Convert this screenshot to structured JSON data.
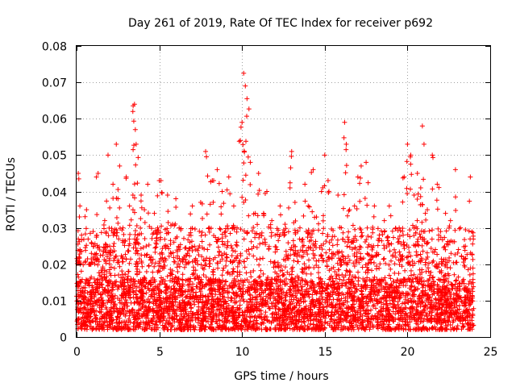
{
  "chart_data": {
    "type": "scatter",
    "title": "Day 261 of 2019, Rate Of TEC Index for receiver p692",
    "xlabel": "GPS time / hours",
    "ylabel": "ROTI / TECUs",
    "xlim": [
      0,
      25
    ],
    "ylim": [
      0,
      0.08
    ],
    "xticks": [
      0,
      5,
      10,
      15,
      20,
      25
    ],
    "xtick_labels": [
      "0",
      "5",
      "10",
      "15",
      "20",
      "25"
    ],
    "yticks": [
      0,
      0.01,
      0.02,
      0.03,
      0.04,
      0.05,
      0.06,
      0.07,
      0.08
    ],
    "ytick_labels": [
      "0",
      "0.01",
      "0.02",
      "0.03",
      "0.04",
      "0.05",
      "0.06",
      "0.07",
      "0.08"
    ],
    "grid": true,
    "marker": "+",
    "series_color": "#ff0000",
    "series": [
      {
        "name": "ROTI",
        "x": [
          0.1,
          0.15,
          0.2,
          0.3,
          0.45,
          0.6,
          0.8,
          1.0,
          1.2,
          1.3,
          1.5,
          1.7,
          1.9,
          2.0,
          2.2,
          2.4,
          2.5,
          2.6,
          2.8,
          3.0,
          3.2,
          3.4,
          3.5,
          3.55,
          3.6,
          3.7,
          3.9,
          4.1,
          4.3,
          4.5,
          4.7,
          4.9,
          5.0,
          5.1,
          5.3,
          5.5,
          5.8,
          6.0,
          6.2,
          6.5,
          6.8,
          7.0,
          7.2,
          7.5,
          7.8,
          8.0,
          8.2,
          8.5,
          8.8,
          9.0,
          9.2,
          9.5,
          9.7,
          9.9,
          10.0,
          10.1,
          10.2,
          10.3,
          10.5,
          10.8,
          11.0,
          11.3,
          11.5,
          11.8,
          12.0,
          12.3,
          12.6,
          12.9,
          13.0,
          13.2,
          13.5,
          13.8,
          14.0,
          14.3,
          14.5,
          14.8,
          15.0,
          15.2,
          15.5,
          15.8,
          16.0,
          16.2,
          16.3,
          16.5,
          16.8,
          17.0,
          17.2,
          17.5,
          17.8,
          18.0,
          18.3,
          18.6,
          18.9,
          19.2,
          19.5,
          19.8,
          20.0,
          20.2,
          20.4,
          20.6,
          20.8,
          20.9,
          21.0,
          21.2,
          21.5,
          21.8,
          22.0,
          22.3,
          22.6,
          22.9,
          23.2,
          23.5,
          23.8
        ],
        "y": [
          0.045,
          0.022,
          0.036,
          0.028,
          0.012,
          0.035,
          0.02,
          0.029,
          0.044,
          0.045,
          0.016,
          0.032,
          0.05,
          0.025,
          0.042,
          0.053,
          0.038,
          0.047,
          0.03,
          0.044,
          0.036,
          0.062,
          0.064,
          0.057,
          0.053,
          0.028,
          0.039,
          0.035,
          0.042,
          0.022,
          0.034,
          0.03,
          0.043,
          0.043,
          0.025,
          0.039,
          0.031,
          0.038,
          0.03,
          0.022,
          0.028,
          0.036,
          0.024,
          0.037,
          0.051,
          0.03,
          0.043,
          0.046,
          0.04,
          0.029,
          0.044,
          0.036,
          0.03,
          0.054,
          0.059,
          0.0725,
          0.069,
          0.0655,
          0.048,
          0.034,
          0.045,
          0.034,
          0.04,
          0.032,
          0.028,
          0.036,
          0.031,
          0.041,
          0.051,
          0.037,
          0.03,
          0.042,
          0.036,
          0.046,
          0.033,
          0.04,
          0.05,
          0.043,
          0.023,
          0.039,
          0.03,
          0.059,
          0.053,
          0.035,
          0.036,
          0.044,
          0.047,
          0.048,
          0.025,
          0.036,
          0.028,
          0.032,
          0.036,
          0.024,
          0.03,
          0.044,
          0.053,
          0.05,
          0.039,
          0.045,
          0.041,
          0.058,
          0.053,
          0.035,
          0.05,
          0.042,
          0.029,
          0.034,
          0.032,
          0.046,
          0.03,
          0.025,
          0.044
        ]
      }
    ],
    "dense_band": {
      "description_values": "bulk of points",
      "x_range": [
        0,
        24
      ],
      "y_range": [
        0.002,
        0.03
      ]
    }
  }
}
